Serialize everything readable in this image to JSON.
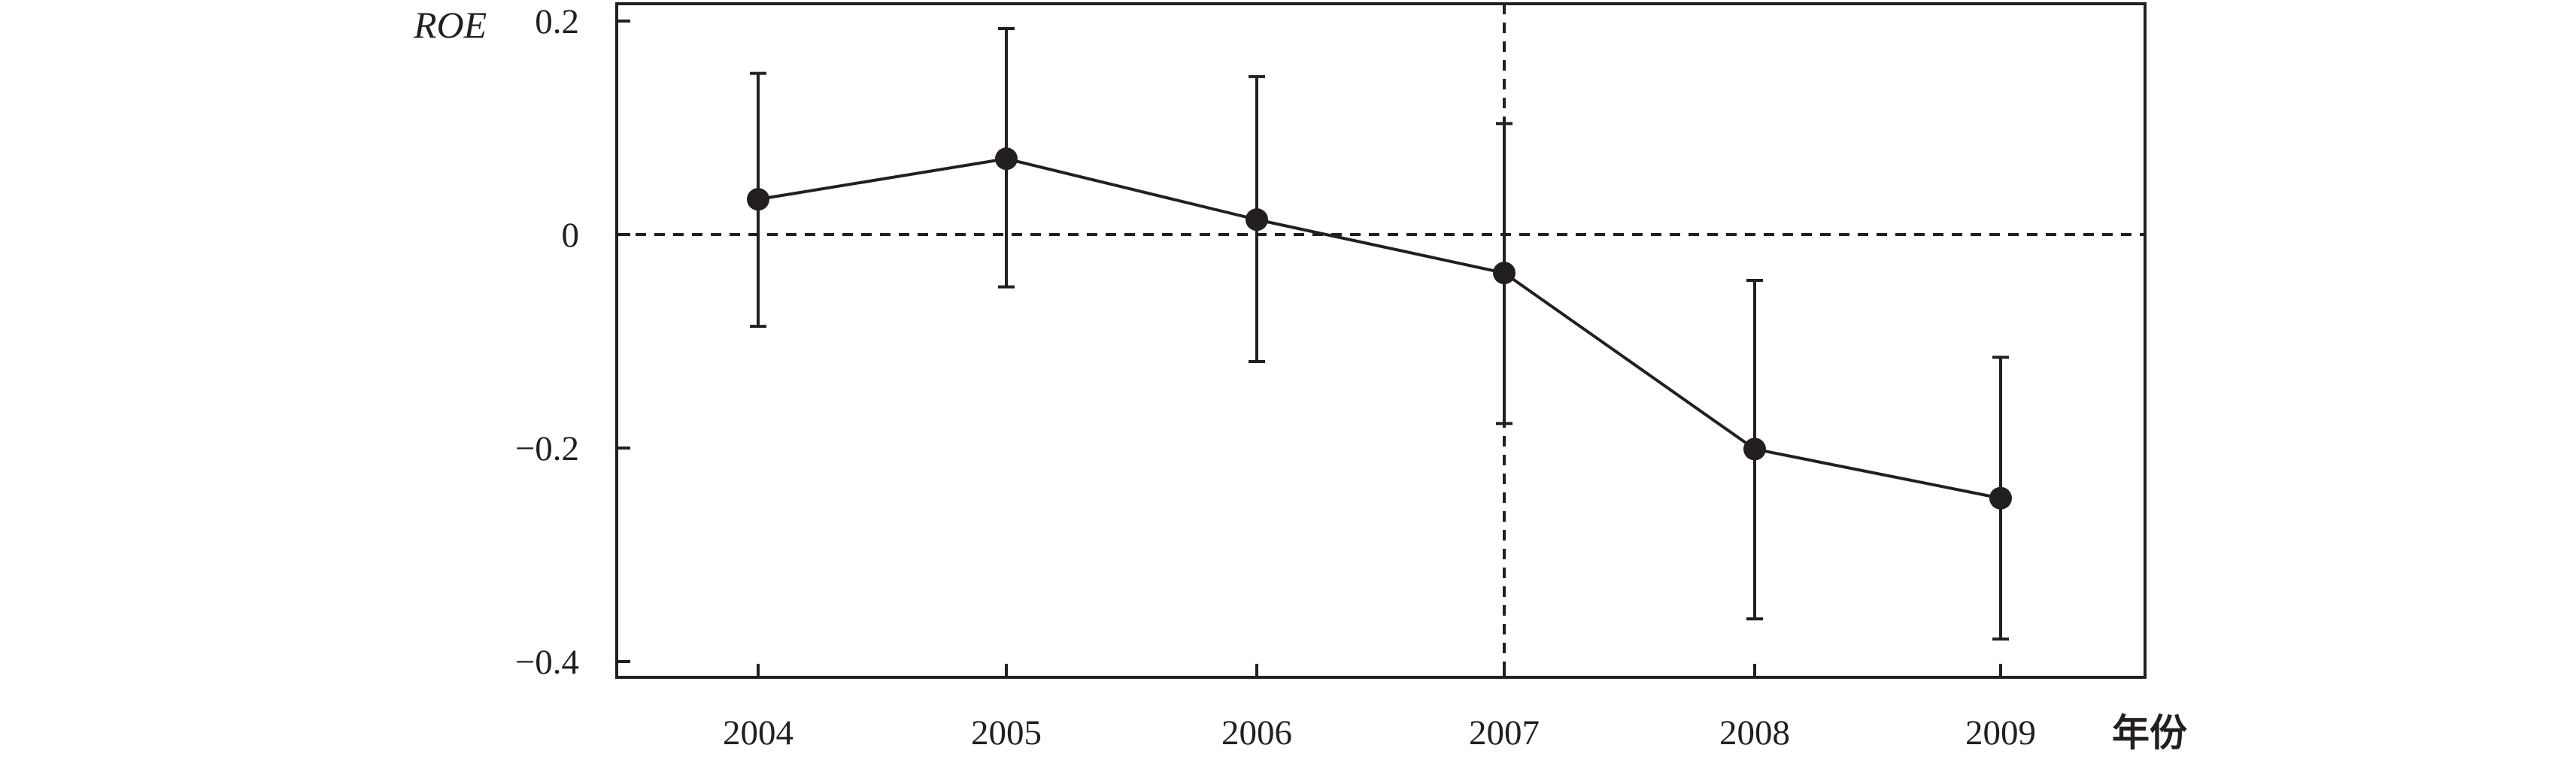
{
  "chart_data": {
    "type": "line",
    "ylabel": "ROE",
    "xlabel": "年份",
    "categories": [
      "2004",
      "2005",
      "2006",
      "2007",
      "2008",
      "2009"
    ],
    "series": [
      {
        "values": [
          0.033,
          0.071,
          0.014,
          -0.036,
          -0.201,
          -0.247
        ],
        "ci_upper": [
          0.151,
          0.193,
          0.148,
          0.104,
          -0.043,
          -0.115
        ],
        "ci_lower": [
          -0.086,
          -0.049,
          -0.119,
          -0.177,
          -0.36,
          -0.379
        ]
      }
    ],
    "yticks": [
      0.2,
      0,
      -0.2,
      -0.4
    ],
    "ytick_labels": [
      "0.2",
      "0",
      "−0.2",
      "−0.4"
    ],
    "ylim": [
      -0.415,
      0.22
    ],
    "reference_lines": {
      "horizontal_y": 0,
      "vertical_x": "2007",
      "style": "dashed"
    },
    "grid": false,
    "legend": "none",
    "colors": {
      "line": "#231f20",
      "marker": "#231f20"
    }
  }
}
